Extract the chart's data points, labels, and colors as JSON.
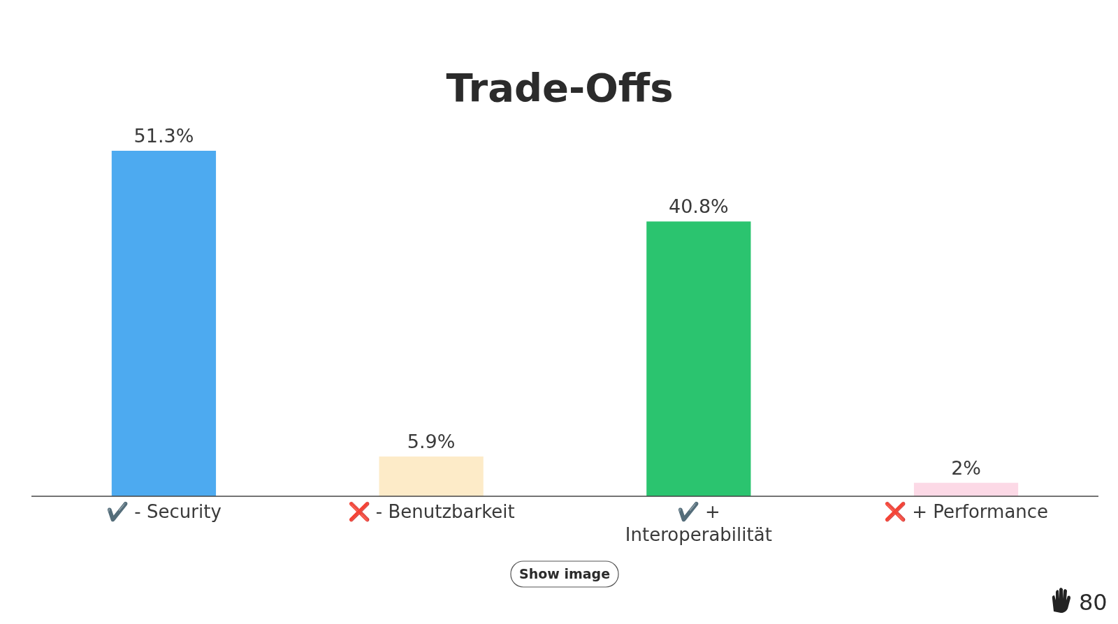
{
  "chart_data": {
    "type": "bar",
    "title": "Trade-Offs",
    "categories": [
      "✔️ - Security",
      "❌ - Benutzbarkeit",
      "✔️ + Interoperabilität",
      "❌ + Performance"
    ],
    "values": [
      51.3,
      5.9,
      40.8,
      2
    ],
    "value_labels": [
      "51.3%",
      "5.9%",
      "40.8%",
      "2%"
    ],
    "colors": [
      "#4daaf0",
      "#fdebc8",
      "#2bc46f",
      "#fcd9e6"
    ],
    "annotations": [
      "Show image",
      "80"
    ]
  }
}
